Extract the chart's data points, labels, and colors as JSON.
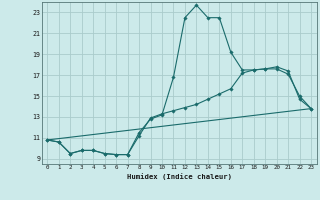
{
  "xlabel": "Humidex (Indice chaleur)",
  "bg_color": "#cceaea",
  "grid_color": "#aacccc",
  "line_color": "#1a6b6b",
  "xlim": [
    -0.5,
    23.5
  ],
  "ylim": [
    8.5,
    24.0
  ],
  "yticks": [
    9,
    11,
    13,
    15,
    17,
    19,
    21,
    23
  ],
  "xticks": [
    0,
    1,
    2,
    3,
    4,
    5,
    6,
    7,
    8,
    9,
    10,
    11,
    12,
    13,
    14,
    15,
    16,
    17,
    18,
    19,
    20,
    21,
    22,
    23
  ],
  "series1_x": [
    0,
    1,
    2,
    3,
    4,
    5,
    6,
    7,
    8,
    9,
    10,
    11,
    12,
    13,
    14,
    15,
    16,
    17,
    18,
    19,
    20,
    21,
    22,
    23
  ],
  "series1_y": [
    10.8,
    10.6,
    9.5,
    9.8,
    9.8,
    9.5,
    9.4,
    9.4,
    11.5,
    12.8,
    13.2,
    16.8,
    22.5,
    23.7,
    22.5,
    22.5,
    19.2,
    17.5,
    17.5,
    17.6,
    17.6,
    17.1,
    15.0,
    13.8
  ],
  "series2_x": [
    0,
    1,
    2,
    3,
    4,
    5,
    6,
    7,
    8,
    9,
    10,
    11,
    12,
    13,
    14,
    15,
    16,
    17,
    18,
    19,
    20,
    21,
    22,
    23
  ],
  "series2_y": [
    10.8,
    10.6,
    9.5,
    9.8,
    9.8,
    9.5,
    9.4,
    9.4,
    11.2,
    12.9,
    13.3,
    13.6,
    13.9,
    14.2,
    14.7,
    15.2,
    15.7,
    17.2,
    17.5,
    17.6,
    17.8,
    17.4,
    14.7,
    13.8
  ],
  "series3_x": [
    0,
    23
  ],
  "series3_y": [
    10.8,
    13.8
  ]
}
